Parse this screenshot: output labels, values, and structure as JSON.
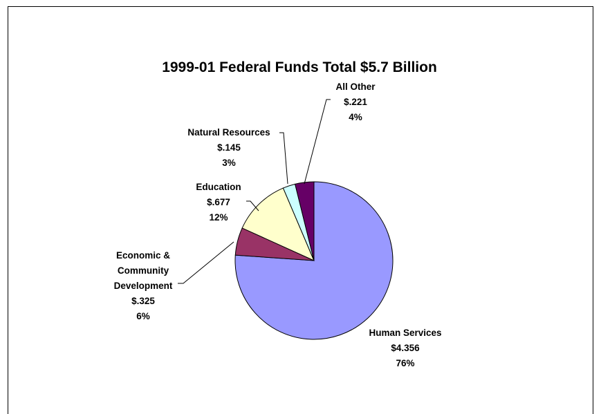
{
  "chart_data": {
    "type": "pie",
    "title": "1999-01 Federal Funds Total $5.7 Billion",
    "slices": [
      {
        "name": "Human Services",
        "amount": "$4.356",
        "value": 4.356,
        "percent": "76%",
        "color": "#9999FF"
      },
      {
        "name": "Economic & Community Development",
        "label_lines": [
          "Economic &",
          "Community",
          "Development"
        ],
        "amount": "$.325",
        "value": 0.325,
        "percent": "6%",
        "color": "#993366"
      },
      {
        "name": "Education",
        "amount": "$.677",
        "value": 0.677,
        "percent": "12%",
        "color": "#FFFFCC"
      },
      {
        "name": "Natural Resources",
        "amount": "$.145",
        "value": 0.145,
        "percent": "3%",
        "color": "#CCFFFF"
      },
      {
        "name": "All Other",
        "amount": "$.221",
        "value": 0.221,
        "percent": "4%",
        "color": "#660066"
      }
    ],
    "start": "12 o'clock",
    "direction": "clockwise",
    "legend": "none"
  }
}
